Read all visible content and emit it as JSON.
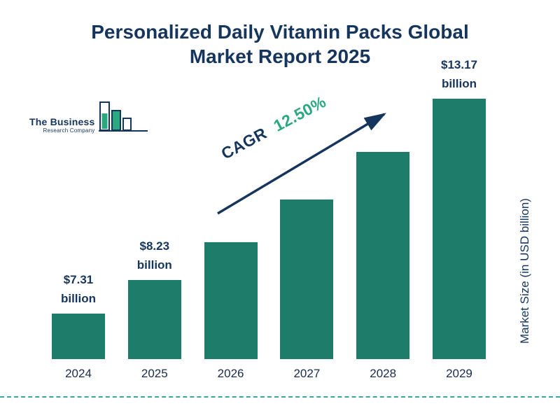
{
  "title_lines": "Personalized Daily Vitamin Packs Global\nMarket Report 2025",
  "logo": {
    "line1": "The Business",
    "line2": "Research Company"
  },
  "cagr": {
    "label": "CAGR",
    "value": "12.50%"
  },
  "y_axis_label": "Market Size (in USD billion)",
  "chart_data": {
    "type": "bar",
    "title": "Personalized Daily Vitamin Packs Global Market Report 2025",
    "categories": [
      "2024",
      "2025",
      "2026",
      "2027",
      "2028",
      "2029"
    ],
    "values": [
      7.31,
      8.23,
      9.26,
      10.41,
      11.71,
      13.17
    ],
    "value_labels": [
      "$7.31\nbillion",
      "$8.23\nbillion",
      "",
      "",
      "",
      "$13.17\nbillion"
    ],
    "xlabel": "",
    "ylabel": "Market Size (in USD billion)",
    "cagr": "12.50%",
    "legend": [],
    "grid": false,
    "axis_baseline_nonzero": true,
    "colors": {
      "bar": "#1E7C6B",
      "title": "#16355D",
      "accent_green": "#2AA87F",
      "dashed_line": "#35A79C",
      "arrow": "#16355D"
    }
  }
}
